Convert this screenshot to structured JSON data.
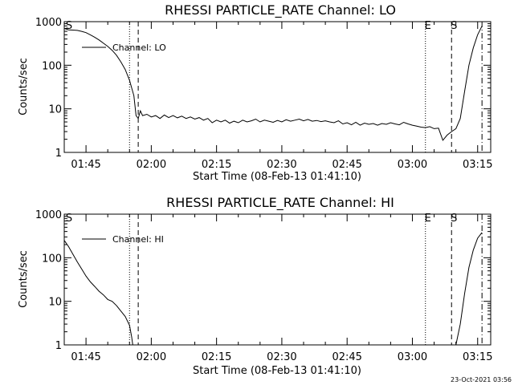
{
  "footer": {
    "timestamp": "23-Oct-2021 03:56"
  },
  "chart_data": [
    {
      "type": "line",
      "title": "RHESSI PARTICLE_RATE Channel: LO",
      "xlabel": "Start Time (08-Feb-13 01:41:10)",
      "ylabel": "Counts/sec",
      "yscale": "log",
      "ylim": [
        1,
        1000
      ],
      "yticks": [
        1,
        10,
        100,
        1000
      ],
      "ytick_labels": [
        "1",
        "10",
        "100",
        "1000"
      ],
      "xlim": [
        "01:40",
        "03:18"
      ],
      "xtick_labels": [
        "01:45",
        "02:00",
        "02:15",
        "02:30",
        "02:45",
        "03:00",
        "03:15"
      ],
      "legend": {
        "position": "top-left",
        "entries": [
          "Channel: LO"
        ]
      },
      "markers": [
        {
          "label": "S",
          "time": "01:40",
          "style": "none"
        },
        {
          "label": "",
          "time": "01:55",
          "style": "dotted"
        },
        {
          "label": "",
          "time": "01:57",
          "style": "dashed"
        },
        {
          "label": "E",
          "time": "03:03",
          "style": "dotted"
        },
        {
          "label": "S",
          "time": "03:09",
          "style": "dashed"
        },
        {
          "label": "",
          "time": "03:16",
          "style": "dashdot"
        }
      ],
      "series": [
        {
          "x": [
            "01:40",
            "01:41",
            "01:42",
            "01:43",
            "01:44",
            "01:45",
            "01:46",
            "01:47",
            "01:48",
            "01:49",
            "01:50",
            "01:51",
            "01:52",
            "01:53",
            "01:54",
            "01:55",
            "01:56",
            "01:56:30",
            "01:57",
            "01:57:30",
            "01:58",
            "01:59",
            "02:00",
            "02:01",
            "02:02",
            "02:03",
            "02:04",
            "02:05",
            "02:06",
            "02:07",
            "02:08",
            "02:09",
            "02:10",
            "02:11",
            "02:12",
            "02:13",
            "02:14",
            "02:15",
            "02:16",
            "02:17",
            "02:18",
            "02:19",
            "02:20",
            "02:21",
            "02:22",
            "02:23",
            "02:24",
            "02:25",
            "02:26",
            "02:27",
            "02:28",
            "02:29",
            "02:30",
            "02:31",
            "02:32",
            "02:33",
            "02:34",
            "02:35",
            "02:36",
            "02:37",
            "02:38",
            "02:39",
            "02:40",
            "02:41",
            "02:42",
            "02:43",
            "02:44",
            "02:45",
            "02:46",
            "02:47",
            "02:48",
            "02:49",
            "02:50",
            "02:51",
            "02:52",
            "02:53",
            "02:54",
            "02:55",
            "02:56",
            "02:57",
            "02:58",
            "02:59",
            "03:00",
            "03:01",
            "03:02",
            "03:03",
            "03:04",
            "03:05",
            "03:06",
            "03:07",
            "03:08",
            "03:09",
            "03:10",
            "03:11",
            "03:12",
            "03:13",
            "03:14",
            "03:15",
            "03:16"
          ],
          "y": [
            700,
            650,
            640,
            630,
            600,
            560,
            500,
            440,
            380,
            320,
            270,
            220,
            170,
            120,
            80,
            45,
            20,
            7,
            6,
            9,
            7,
            7.5,
            6.5,
            7,
            6,
            7.2,
            6.3,
            7,
            6.2,
            6.8,
            6,
            6.5,
            5.8,
            6.3,
            5.5,
            6,
            4.8,
            5.5,
            5,
            5.5,
            4.7,
            5.2,
            4.8,
            5.5,
            5,
            5.3,
            5.8,
            5,
            5.5,
            5.2,
            4.9,
            5.4,
            5,
            5.6,
            5.2,
            5.5,
            5.8,
            5.3,
            5.7,
            5.2,
            5.4,
            5.1,
            5.3,
            5,
            4.8,
            5.3,
            4.5,
            4.8,
            4.3,
            4.9,
            4.2,
            4.7,
            4.4,
            4.6,
            4.2,
            4.6,
            4.4,
            4.8,
            4.5,
            4.3,
            4.9,
            4.5,
            4.2,
            4,
            3.8,
            3.7,
            3.9,
            3.5,
            3.6,
            1.9,
            2.5,
            3,
            3.5,
            6,
            25,
            100,
            250,
            500,
            800
          ]
        }
      ]
    },
    {
      "type": "line",
      "title": "RHESSI PARTICLE_RATE Channel: HI",
      "xlabel": "Start Time (08-Feb-13 01:41:10)",
      "ylabel": "Counts/sec",
      "yscale": "log",
      "ylim": [
        1,
        1000
      ],
      "yticks": [
        1,
        10,
        100,
        1000
      ],
      "ytick_labels": [
        "1",
        "10",
        "100",
        "1000"
      ],
      "xlim": [
        "01:40",
        "03:18"
      ],
      "xtick_labels": [
        "01:45",
        "02:00",
        "02:15",
        "02:30",
        "02:45",
        "03:00",
        "03:15"
      ],
      "legend": {
        "position": "top-left",
        "entries": [
          "Channel: HI"
        ]
      },
      "markers": [
        {
          "label": "S",
          "time": "01:40",
          "style": "none"
        },
        {
          "label": "",
          "time": "01:55",
          "style": "dotted"
        },
        {
          "label": "",
          "time": "01:57",
          "style": "dashed"
        },
        {
          "label": "E",
          "time": "03:03",
          "style": "dotted"
        },
        {
          "label": "S",
          "time": "03:09",
          "style": "dashed"
        },
        {
          "label": "",
          "time": "03:16",
          "style": "dashdot"
        }
      ],
      "series": [
        {
          "x": [
            "01:40",
            "01:41",
            "01:42",
            "01:43",
            "01:44",
            "01:45",
            "01:46",
            "01:47",
            "01:48",
            "01:49",
            "01:50",
            "01:51",
            "01:52",
            "01:53",
            "01:54",
            "01:55",
            "01:55:30",
            "01:55:45"
          ],
          "y": [
            250,
            180,
            120,
            80,
            55,
            38,
            28,
            22,
            17,
            14,
            11,
            10,
            8,
            6,
            4.5,
            2.8,
            1.5,
            1
          ],
          "segment2_x": [
            "03:10",
            "03:11",
            "03:12",
            "03:13",
            "03:14",
            "03:15",
            "03:16"
          ],
          "segment2_y": [
            1,
            3,
            15,
            60,
            150,
            280,
            380
          ]
        }
      ]
    }
  ]
}
